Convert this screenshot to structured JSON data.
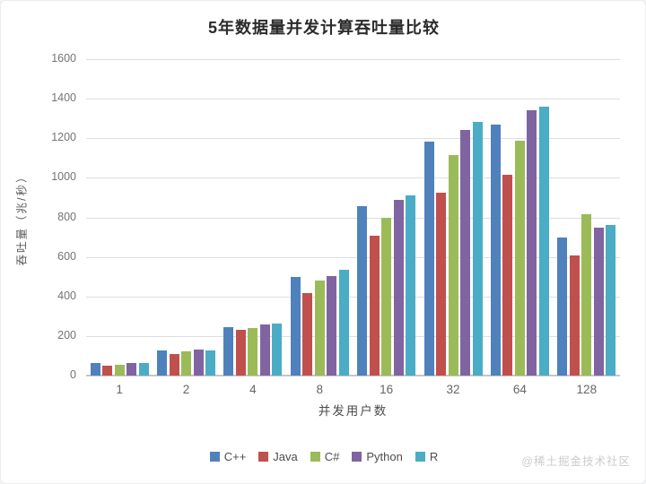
{
  "page": {
    "watermark": "@稀土掘金技术社区"
  },
  "chart_data": {
    "type": "bar",
    "title": "5年数据量并发计算吞吐量比较",
    "xlabel": "并发用户数",
    "ylabel": "吞吐量（兆/秒）",
    "categories": [
      "1",
      "2",
      "4",
      "8",
      "16",
      "32",
      "64",
      "128"
    ],
    "series": [
      {
        "name": "C++",
        "color": "#4F81BD",
        "values": [
          65,
          125,
          245,
          497,
          858,
          1183,
          1268,
          700
        ]
      },
      {
        "name": "Java",
        "color": "#C0504D",
        "values": [
          50,
          110,
          230,
          415,
          708,
          925,
          1015,
          608
        ]
      },
      {
        "name": "C#",
        "color": "#9BBB59",
        "values": [
          55,
          122,
          240,
          480,
          800,
          1113,
          1188,
          818
        ]
      },
      {
        "name": "Python",
        "color": "#8064A2",
        "values": [
          64,
          130,
          258,
          505,
          888,
          1243,
          1340,
          750
        ]
      },
      {
        "name": "R",
        "color": "#4BACC6",
        "values": [
          65,
          127,
          265,
          535,
          913,
          1283,
          1360,
          763
        ]
      }
    ],
    "ylim": [
      0,
      1600
    ],
    "yticks": [
      0,
      200,
      400,
      600,
      800,
      1000,
      1200,
      1400,
      1600
    ],
    "grid": true,
    "legend_position": "bottom",
    "colors": {
      "gridline": "#dedede",
      "axisline": "#c6c6c6",
      "tick_text": "#737373",
      "title_text": "#2b2b2b"
    }
  }
}
